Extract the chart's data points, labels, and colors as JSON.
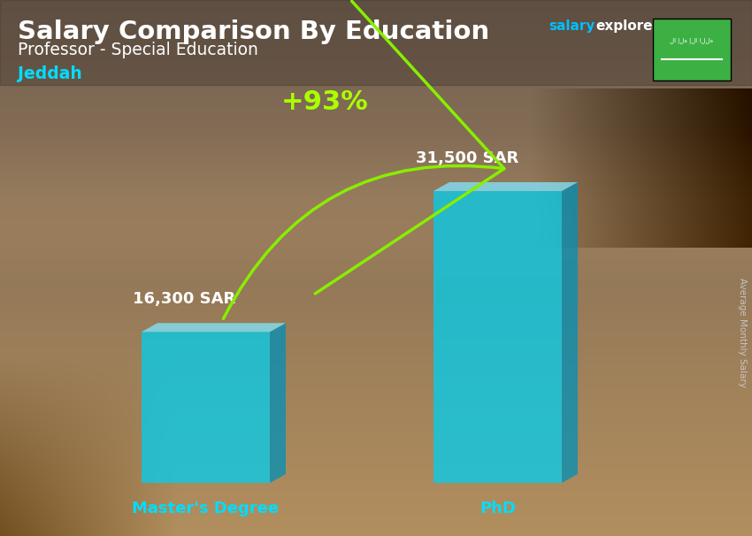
{
  "title_main": "Salary Comparison By Education",
  "subtitle": "Professor - Special Education",
  "city": "Jeddah",
  "ylabel": "Average Monthly Salary",
  "categories": [
    "Master's Degree",
    "PhD"
  ],
  "values": [
    16300,
    31500
  ],
  "value_labels": [
    "16,300 SAR",
    "31,500 SAR"
  ],
  "pct_label": "+93%",
  "bar_face_color": "#00CFEF",
  "bar_top_color": "#80E8FF",
  "bar_side_color": "#0090B8",
  "bar_alpha": 0.75,
  "title_color": "#FFFFFF",
  "subtitle_color": "#FFFFFF",
  "city_color": "#00DDFF",
  "value_color": "#FFFFFF",
  "pct_color": "#AAFF00",
  "arrow_color": "#88EE00",
  "xlabel_color": "#00DDFF",
  "salary_color": "#00BFFF",
  "explorer_color": "#FFFFFF",
  "com_color": "#00BFFF",
  "flag_bg": "#3CB043",
  "ylabel_color": "#CCCCCC",
  "figsize": [
    8.5,
    6.06
  ],
  "dpi": 100
}
